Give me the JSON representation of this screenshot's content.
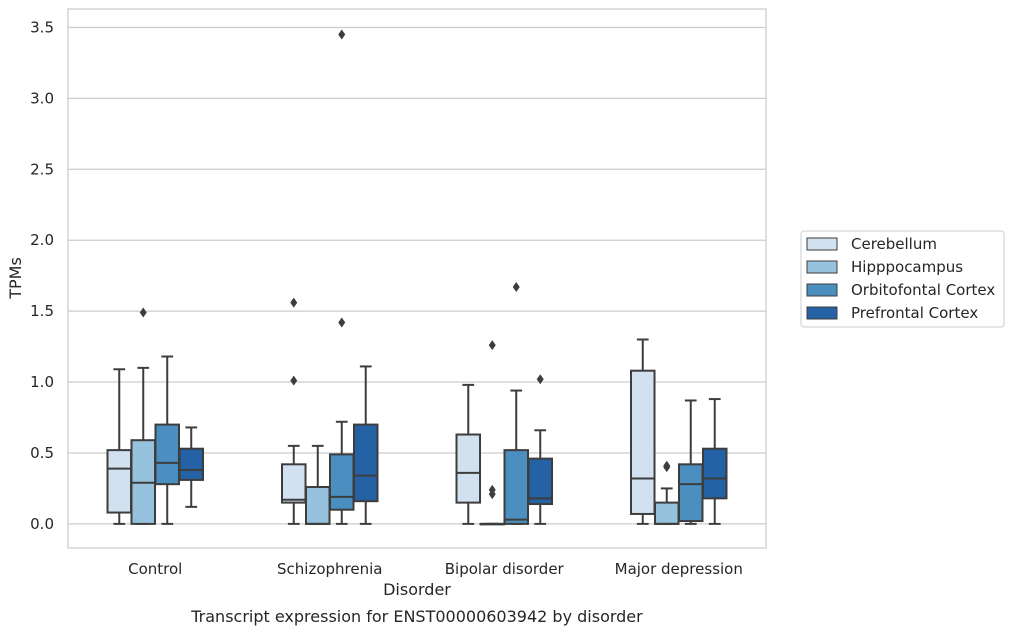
{
  "caption": "Transcript expression for ENST00000603942 by disorder",
  "colors": {
    "box_edge": "#3d3d3d",
    "grid": "#cccccc",
    "frame": "#cccccc",
    "series": [
      "#d1e1f0",
      "#97c2dd",
      "#4b8fc1",
      "#2462a5"
    ]
  },
  "chart_data": {
    "type": "box",
    "xlabel": "Disorder",
    "ylabel": "TPMs",
    "ylim": [
      -0.17,
      3.63
    ],
    "yticks": [
      "0.0",
      "0.5",
      "1.0",
      "1.5",
      "2.0",
      "2.5",
      "3.0",
      "3.5"
    ],
    "grid": "horizontal",
    "legend_position": "right, outside plot area",
    "categories": [
      "Control",
      "Schizophrenia",
      "Bipolar disorder",
      "Major depression"
    ],
    "series": [
      {
        "name": "Cerebellum",
        "boxes": [
          {
            "min": 0.0,
            "q1": 0.08,
            "median": 0.39,
            "q3": 0.52,
            "max": 1.09,
            "outliers": []
          },
          {
            "min": 0.0,
            "q1": 0.15,
            "median": 0.17,
            "q3": 0.42,
            "max": 0.55,
            "outliers": [
              1.01,
              1.56
            ]
          },
          {
            "min": 0.0,
            "q1": 0.15,
            "median": 0.36,
            "q3": 0.63,
            "max": 0.98,
            "outliers": []
          },
          {
            "min": 0.0,
            "q1": 0.07,
            "median": 0.32,
            "q3": 1.08,
            "max": 1.3,
            "outliers": []
          }
        ]
      },
      {
        "name": "Hipppocampus",
        "boxes": [
          {
            "min": 0.0,
            "q1": 0.0,
            "median": 0.29,
            "q3": 0.59,
            "max": 1.1,
            "outliers": [
              1.49
            ]
          },
          {
            "min": 0.0,
            "q1": 0.0,
            "median": 0.0,
            "q3": 0.26,
            "max": 0.55,
            "outliers": []
          },
          {
            "min": 0.0,
            "q1": 0.0,
            "median": 0.0,
            "q3": 0.0,
            "max": 0.0,
            "outliers": [
              0.21,
              0.24,
              1.26
            ]
          },
          {
            "min": 0.0,
            "q1": 0.0,
            "median": 0.0,
            "q3": 0.15,
            "max": 0.25,
            "outliers": [
              0.4,
              0.41
            ]
          }
        ]
      },
      {
        "name": "Orbitofontal Cortex",
        "boxes": [
          {
            "min": 0.0,
            "q1": 0.28,
            "median": 0.43,
            "q3": 0.7,
            "max": 1.18,
            "outliers": []
          },
          {
            "min": 0.0,
            "q1": 0.1,
            "median": 0.19,
            "q3": 0.49,
            "max": 0.72,
            "outliers": [
              1.42,
              3.45
            ]
          },
          {
            "min": 0.0,
            "q1": 0.0,
            "median": 0.03,
            "q3": 0.52,
            "max": 0.94,
            "outliers": [
              1.67
            ]
          },
          {
            "min": 0.0,
            "q1": 0.02,
            "median": 0.28,
            "q3": 0.42,
            "max": 0.87,
            "outliers": []
          }
        ]
      },
      {
        "name": "Prefrontal Cortex",
        "boxes": [
          {
            "min": 0.12,
            "q1": 0.31,
            "median": 0.38,
            "q3": 0.53,
            "max": 0.68,
            "outliers": []
          },
          {
            "min": 0.0,
            "q1": 0.16,
            "median": 0.34,
            "q3": 0.7,
            "max": 1.11,
            "outliers": []
          },
          {
            "min": 0.0,
            "q1": 0.14,
            "median": 0.18,
            "q3": 0.46,
            "max": 0.66,
            "outliers": [
              1.02
            ]
          },
          {
            "min": 0.0,
            "q1": 0.18,
            "median": 0.32,
            "q3": 0.53,
            "max": 0.88,
            "outliers": []
          }
        ]
      }
    ]
  }
}
